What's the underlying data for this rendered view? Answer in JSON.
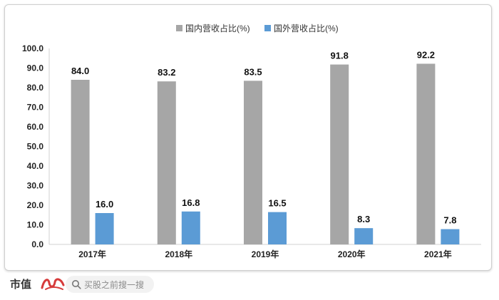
{
  "chart_data": {
    "type": "bar",
    "categories": [
      "2017年",
      "2018年",
      "2019年",
      "2020年",
      "2021年"
    ],
    "series": [
      {
        "name": "国内营收占比(%)",
        "values": [
          84.0,
          83.2,
          83.5,
          91.8,
          92.2
        ],
        "color": "#a6a6a6"
      },
      {
        "name": "国外营收占比(%)",
        "values": [
          16.0,
          16.8,
          16.5,
          8.3,
          7.8
        ],
        "color": "#5b9bd5"
      }
    ],
    "ylim": [
      0,
      100
    ],
    "ytick_step": 10,
    "grid": false,
    "legend_position": "top-center",
    "data_labels": true
  },
  "footer": {
    "brand": "市值",
    "search_placeholder": "买股之前搜一搜"
  },
  "icons": {
    "logo": "brand-logo-icon",
    "search": "search-icon"
  }
}
